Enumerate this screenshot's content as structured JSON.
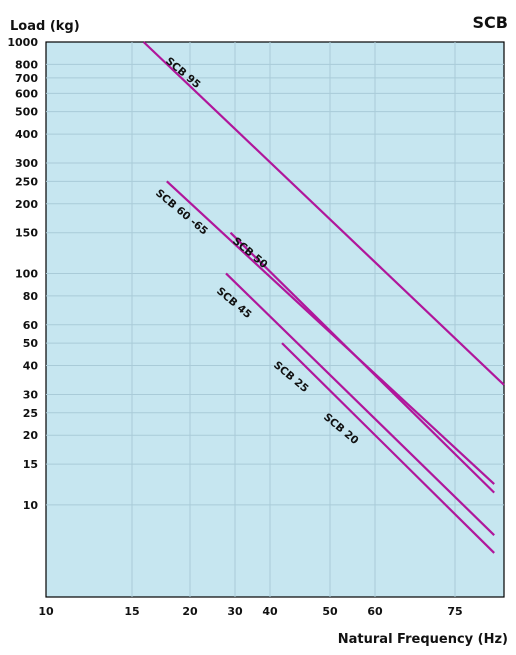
{
  "chart_data": {
    "type": "line",
    "title": "SCB",
    "ylabel": "Load (kg)",
    "xlabel": "Natural Frequency (Hz)",
    "y_scale": "log",
    "x_scale": "custom",
    "ylim": [
      4,
      1000
    ],
    "grid": true,
    "background_color": "#c6e6f0",
    "grid_color": "#a9cbd8",
    "line_color": "#b0169b",
    "x_ticks": [
      {
        "label": "10",
        "value": 10
      },
      {
        "label": "15",
        "value": 15
      },
      {
        "label": "20",
        "value": 20
      },
      {
        "label": "30",
        "value": 30
      },
      {
        "label": "40",
        "value": 40
      },
      {
        "label": "50",
        "value": 50
      },
      {
        "label": "60",
        "value": 60
      },
      {
        "label": "75",
        "value": 75
      }
    ],
    "y_ticks": [
      {
        "label": "1000",
        "value": 1000
      },
      {
        "label": "800",
        "value": 800
      },
      {
        "label": "700",
        "value": 700
      },
      {
        "label": "600",
        "value": 600
      },
      {
        "label": "500",
        "value": 500
      },
      {
        "label": "400",
        "value": 400
      },
      {
        "label": "300",
        "value": 300
      },
      {
        "label": "250",
        "value": 250
      },
      {
        "label": "200",
        "value": 200
      },
      {
        "label": "150",
        "value": 150
      },
      {
        "label": "100",
        "value": 100
      },
      {
        "label": "80",
        "value": 80
      },
      {
        "label": "60",
        "value": 60
      },
      {
        "label": "50",
        "value": 50
      },
      {
        "label": "40",
        "value": 40
      },
      {
        "label": "30",
        "value": 30
      },
      {
        "label": "25",
        "value": 25
      },
      {
        "label": "20",
        "value": 20
      },
      {
        "label": "15",
        "value": 15
      },
      {
        "label": "10",
        "value": 10
      }
    ],
    "series": [
      {
        "name": "SCB 95",
        "points": [
          [
            16,
            1000
          ],
          [
            85,
            33
          ]
        ]
      },
      {
        "name": "SCB 60 -65",
        "points": [
          [
            18,
            250
          ],
          [
            83,
            12.3
          ]
        ]
      },
      {
        "name": "SCB 50",
        "points": [
          [
            29,
            150
          ],
          [
            83,
            11.3
          ]
        ]
      },
      {
        "name": "SCB 45",
        "points": [
          [
            28,
            100
          ],
          [
            83,
            7.4
          ]
        ]
      },
      {
        "name": "SCB 25",
        "points": [
          [
            42,
            50
          ],
          [
            83,
            6.2
          ]
        ]
      },
      {
        "name": "SCB 20"
      }
    ]
  }
}
